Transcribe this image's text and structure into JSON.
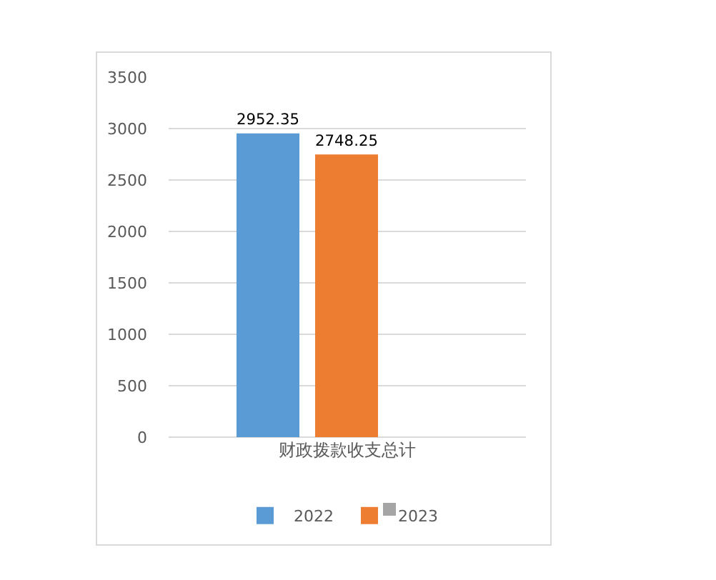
{
  "chart_data": {
    "type": "bar",
    "categories": [
      "财政拨款收支总计"
    ],
    "series": [
      {
        "name": "2022",
        "color": "#5b9bd5",
        "values": [
          2952.35
        ]
      },
      {
        "name": "2023",
        "color": "#ed7d31",
        "values": [
          2748.25
        ]
      }
    ],
    "ylim": [
      0,
      3500
    ],
    "yticks": [
      0,
      500,
      1000,
      1500,
      2000,
      2500,
      3000,
      3500
    ],
    "grid": "y",
    "legend": "bottom",
    "data_labels": true
  }
}
